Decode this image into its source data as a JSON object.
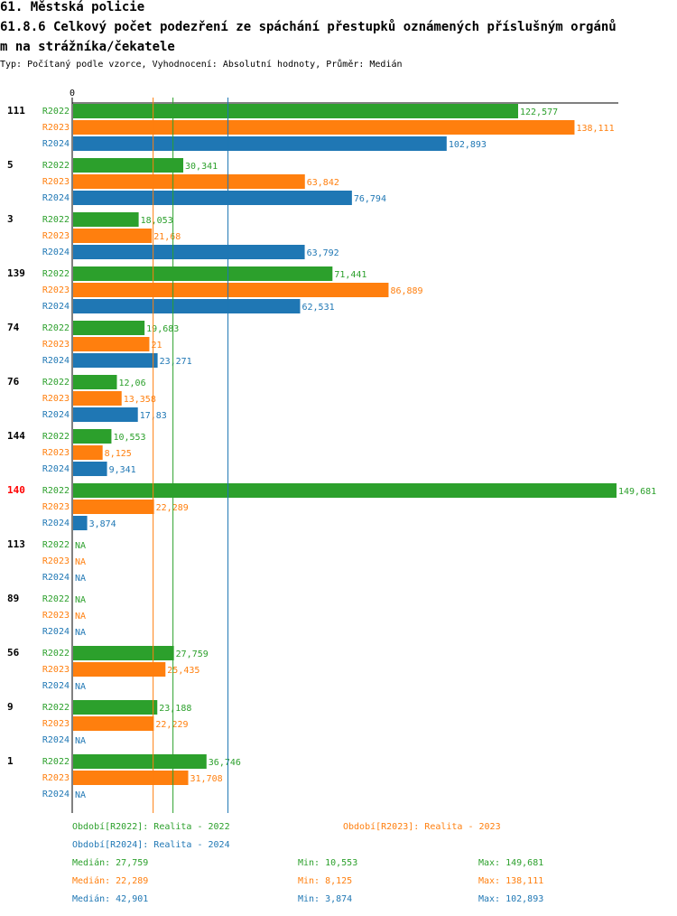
{
  "header": {
    "line1": "61. Městská policie",
    "line2": "61.8.6 Celkový počet podezření ze spáchání přestupků oznámených příslušným orgánů",
    "line3": "m na strážníka/čekatele",
    "subtitle": "Typ: Počítaný podle vzorce, Vyhodnocení: Absolutní hodnoty, Průměr: Medián"
  },
  "colors": {
    "R2022": "#2ca02c",
    "R2023": "#ff7f0e",
    "R2024": "#1f77b4",
    "highlight": "#ff0000"
  },
  "chart_data": {
    "type": "bar",
    "orientation": "horizontal",
    "x_axis_tick": "0",
    "xlim": [
      0,
      149681
    ],
    "series_names": [
      "R2022",
      "R2023",
      "R2024"
    ],
    "categories": [
      {
        "label": "111",
        "highlight": false,
        "values": [
          {
            "num": 122577,
            "text": "122,577"
          },
          {
            "num": 138111,
            "text": "138,111"
          },
          {
            "num": 102893,
            "text": "102,893"
          }
        ]
      },
      {
        "label": "5",
        "highlight": false,
        "values": [
          {
            "num": 30341,
            "text": "30,341"
          },
          {
            "num": 63842,
            "text": "63,842"
          },
          {
            "num": 76794,
            "text": "76,794"
          }
        ]
      },
      {
        "label": "3",
        "highlight": false,
        "values": [
          {
            "num": 18053,
            "text": "18,053"
          },
          {
            "num": 21680,
            "text": "21,68"
          },
          {
            "num": 63792,
            "text": "63,792"
          }
        ]
      },
      {
        "label": "139",
        "highlight": false,
        "values": [
          {
            "num": 71441,
            "text": "71,441"
          },
          {
            "num": 86889,
            "text": "86,889"
          },
          {
            "num": 62531,
            "text": "62,531"
          }
        ]
      },
      {
        "label": "74",
        "highlight": false,
        "values": [
          {
            "num": 19683,
            "text": "19,683"
          },
          {
            "num": 21000,
            "text": "21"
          },
          {
            "num": 23271,
            "text": "23,271"
          }
        ]
      },
      {
        "label": "76",
        "highlight": false,
        "values": [
          {
            "num": 12060,
            "text": "12,06"
          },
          {
            "num": 13358,
            "text": "13,358"
          },
          {
            "num": 17830,
            "text": "17,83"
          }
        ]
      },
      {
        "label": "144",
        "highlight": false,
        "values": [
          {
            "num": 10553,
            "text": "10,553"
          },
          {
            "num": 8125,
            "text": "8,125"
          },
          {
            "num": 9341,
            "text": "9,341"
          }
        ]
      },
      {
        "label": "140",
        "highlight": true,
        "values": [
          {
            "num": 149681,
            "text": "149,681"
          },
          {
            "num": 22289,
            "text": "22,289"
          },
          {
            "num": 3874,
            "text": "3,874"
          }
        ]
      },
      {
        "label": "113",
        "highlight": false,
        "values": [
          {
            "num": null,
            "text": "NA"
          },
          {
            "num": null,
            "text": "NA"
          },
          {
            "num": null,
            "text": "NA"
          }
        ]
      },
      {
        "label": "89",
        "highlight": false,
        "values": [
          {
            "num": null,
            "text": "NA"
          },
          {
            "num": null,
            "text": "NA"
          },
          {
            "num": null,
            "text": "NA"
          }
        ]
      },
      {
        "label": "56",
        "highlight": false,
        "values": [
          {
            "num": 27759,
            "text": "27,759"
          },
          {
            "num": 25435,
            "text": "25,435"
          },
          {
            "num": null,
            "text": "NA"
          }
        ]
      },
      {
        "label": "9",
        "highlight": false,
        "values": [
          {
            "num": 23188,
            "text": "23,188"
          },
          {
            "num": 22229,
            "text": "22,229"
          },
          {
            "num": null,
            "text": "NA"
          }
        ]
      },
      {
        "label": "1",
        "highlight": false,
        "values": [
          {
            "num": 36746,
            "text": "36,746"
          },
          {
            "num": 31708,
            "text": "31,708"
          },
          {
            "num": null,
            "text": "NA"
          }
        ]
      }
    ],
    "median_lines": [
      {
        "series": "R2022",
        "value": 27759
      },
      {
        "series": "R2023",
        "value": 22289
      },
      {
        "series": "R2024",
        "value": 42901
      }
    ]
  },
  "legend": {
    "r2022": "Období[R2022]: Realita - 2022",
    "r2023": "Období[R2023]: Realita - 2023",
    "r2024": "Období[R2024]: Realita - 2024",
    "stats": [
      {
        "median": "Medián: 27,759",
        "min": "Min: 10,553",
        "max": "Max: 149,681"
      },
      {
        "median": "Medián: 22,289",
        "min": "Min: 8,125",
        "max": "Max: 138,111"
      },
      {
        "median": "Medián: 42,901",
        "min": "Min: 3,874",
        "max": "Max: 102,893"
      }
    ]
  }
}
